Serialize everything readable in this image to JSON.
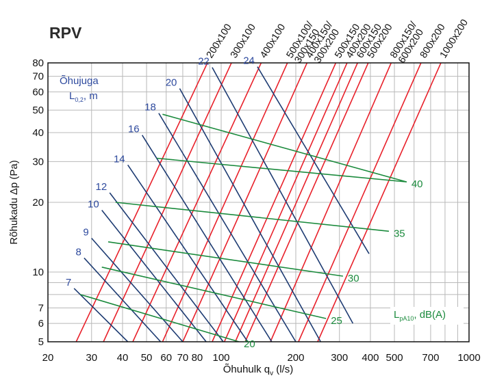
{
  "chart_data": {
    "type": "line",
    "title": "RPV",
    "xlabel": "Õhuhulk q",
    "xlabel_sub": "v",
    "xlabel_unit": " (l/s)",
    "ylabel": "Rõhukadu Δp (Pa)",
    "x_scale": "log",
    "y_scale": "log",
    "xlim": [
      20,
      1000
    ],
    "ylim": [
      5,
      80
    ],
    "x_ticks": [
      20,
      30,
      40,
      50,
      60,
      70,
      80,
      100,
      200,
      300,
      400,
      500,
      700,
      1000
    ],
    "x_tick_labels": [
      "20",
      "30",
      "40",
      "50",
      "60",
      "70",
      "80",
      "100",
      "200",
      "300",
      "400",
      "500",
      "700",
      "1000"
    ],
    "y_ticks": [
      5,
      6,
      7,
      10,
      20,
      30,
      40,
      50,
      60,
      70,
      80
    ],
    "y_tick_labels": [
      "5",
      "6",
      "7",
      "10",
      "20",
      "30",
      "40",
      "50",
      "60",
      "70",
      "80"
    ],
    "grid": true,
    "colors": {
      "size": "#e8202a",
      "throw": "#1d3b72",
      "sound": "#1a8a3c",
      "grid": "#b8b8b8",
      "label_blue": "#2e4a9e"
    },
    "throw_title": "Õhujuga",
    "throw_unit_a": "L",
    "throw_unit_sub": "0,2",
    "throw_unit_b": ", m",
    "sound_unit_a": "L",
    "sound_unit_sub": "pA10",
    "sound_unit_b": ", dB(A)",
    "size_lines": [
      {
        "label": [
          "200x100"
        ],
        "points": [
          [
            26.0,
            5
          ],
          [
            88.0,
            80
          ]
        ]
      },
      {
        "label": [
          "300x100"
        ],
        "points": [
          [
            33.5,
            5
          ],
          [
            110.0,
            80
          ]
        ]
      },
      {
        "label": [
          "400x100"
        ],
        "points": [
          [
            44.0,
            5
          ],
          [
            145.0,
            80
          ]
        ]
      },
      {
        "label": [
          "500x100/",
          "300x150"
        ],
        "points": [
          [
            58.0,
            5
          ],
          [
            185.0,
            80
          ]
        ]
      },
      {
        "label": [
          "400x150/",
          "300x200"
        ],
        "points": [
          [
            70.0,
            5
          ],
          [
            222.0,
            80
          ]
        ]
      },
      {
        "label": [
          "500x150"
        ],
        "points": [
          [
            92.0,
            5
          ],
          [
            290.0,
            80
          ]
        ]
      },
      {
        "label": [
          "400x200"
        ],
        "points": [
          [
            103.0,
            5
          ],
          [
            322.0,
            80
          ]
        ]
      },
      {
        "label": [
          "600x150"
        ],
        "points": [
          [
            114.0,
            5
          ],
          [
            355.0,
            80
          ]
        ]
      },
      {
        "label": [
          "500x200"
        ],
        "points": [
          [
            125.0,
            5
          ],
          [
            392.0,
            80
          ]
        ]
      },
      {
        "label": [
          "800x150/",
          "600x200"
        ],
        "points": [
          [
            158.0,
            5
          ],
          [
            485.0,
            80
          ]
        ]
      },
      {
        "label": [
          "800x200"
        ],
        "points": [
          [
            205.0,
            5
          ],
          [
            640.0,
            80
          ]
        ]
      },
      {
        "label": [
          "1000x200"
        ],
        "points": [
          [
            245.0,
            5
          ],
          [
            770.0,
            80
          ]
        ]
      }
    ],
    "throw_lines": [
      {
        "label": "7",
        "points": [
          [
            25.5,
            8.5
          ],
          [
            42.0,
            5
          ]
        ]
      },
      {
        "label": "8",
        "points": [
          [
            28.0,
            11.5
          ],
          [
            57.0,
            5
          ]
        ]
      },
      {
        "label": "9",
        "points": [
          [
            30.0,
            14.0
          ],
          [
            70.0,
            5
          ]
        ]
      },
      {
        "label": "10",
        "points": [
          [
            33.0,
            18.5
          ],
          [
            87.0,
            5
          ]
        ]
      },
      {
        "label": "12",
        "points": [
          [
            35.5,
            22.0
          ],
          [
            102.0,
            5
          ]
        ]
      },
      {
        "label": "14",
        "points": [
          [
            42.0,
            29.0
          ],
          [
            128.0,
            5
          ]
        ]
      },
      {
        "label": "16",
        "points": [
          [
            48.0,
            39.0
          ],
          [
            160.0,
            5
          ]
        ]
      },
      {
        "label": "18",
        "points": [
          [
            56.0,
            48.5
          ],
          [
            200.0,
            5
          ]
        ]
      },
      {
        "label": "20",
        "points": [
          [
            68.0,
            62.0
          ],
          [
            252.0,
            5
          ]
        ]
      },
      {
        "label": "22",
        "points": [
          [
            92.0,
            76.5
          ],
          [
            340.0,
            6
          ]
        ]
      },
      {
        "label": "24",
        "points": [
          [
            140.0,
            77.0
          ],
          [
            395.0,
            12.0
          ]
        ]
      }
    ],
    "sound_lines": [
      {
        "label": "20",
        "points": [
          [
            27.0,
            8.0
          ],
          [
            118.0,
            5.0
          ]
        ]
      },
      {
        "label": "25",
        "points": [
          [
            33.0,
            10.5
          ],
          [
            265.0,
            6.3
          ]
        ]
      },
      {
        "label": "30",
        "points": [
          [
            35.0,
            13.5
          ],
          [
            310.0,
            9.6
          ]
        ]
      },
      {
        "label": "35",
        "points": [
          [
            37.5,
            20.0
          ],
          [
            475.0,
            15.0
          ]
        ]
      },
      {
        "label": "40",
        "points": [
          [
            55.0,
            31.0
          ],
          [
            560.0,
            24.5
          ]
        ]
      },
      {
        "label": "",
        "points": [
          [
            58.0,
            48.0
          ],
          [
            560.0,
            24.5
          ]
        ]
      }
    ]
  }
}
